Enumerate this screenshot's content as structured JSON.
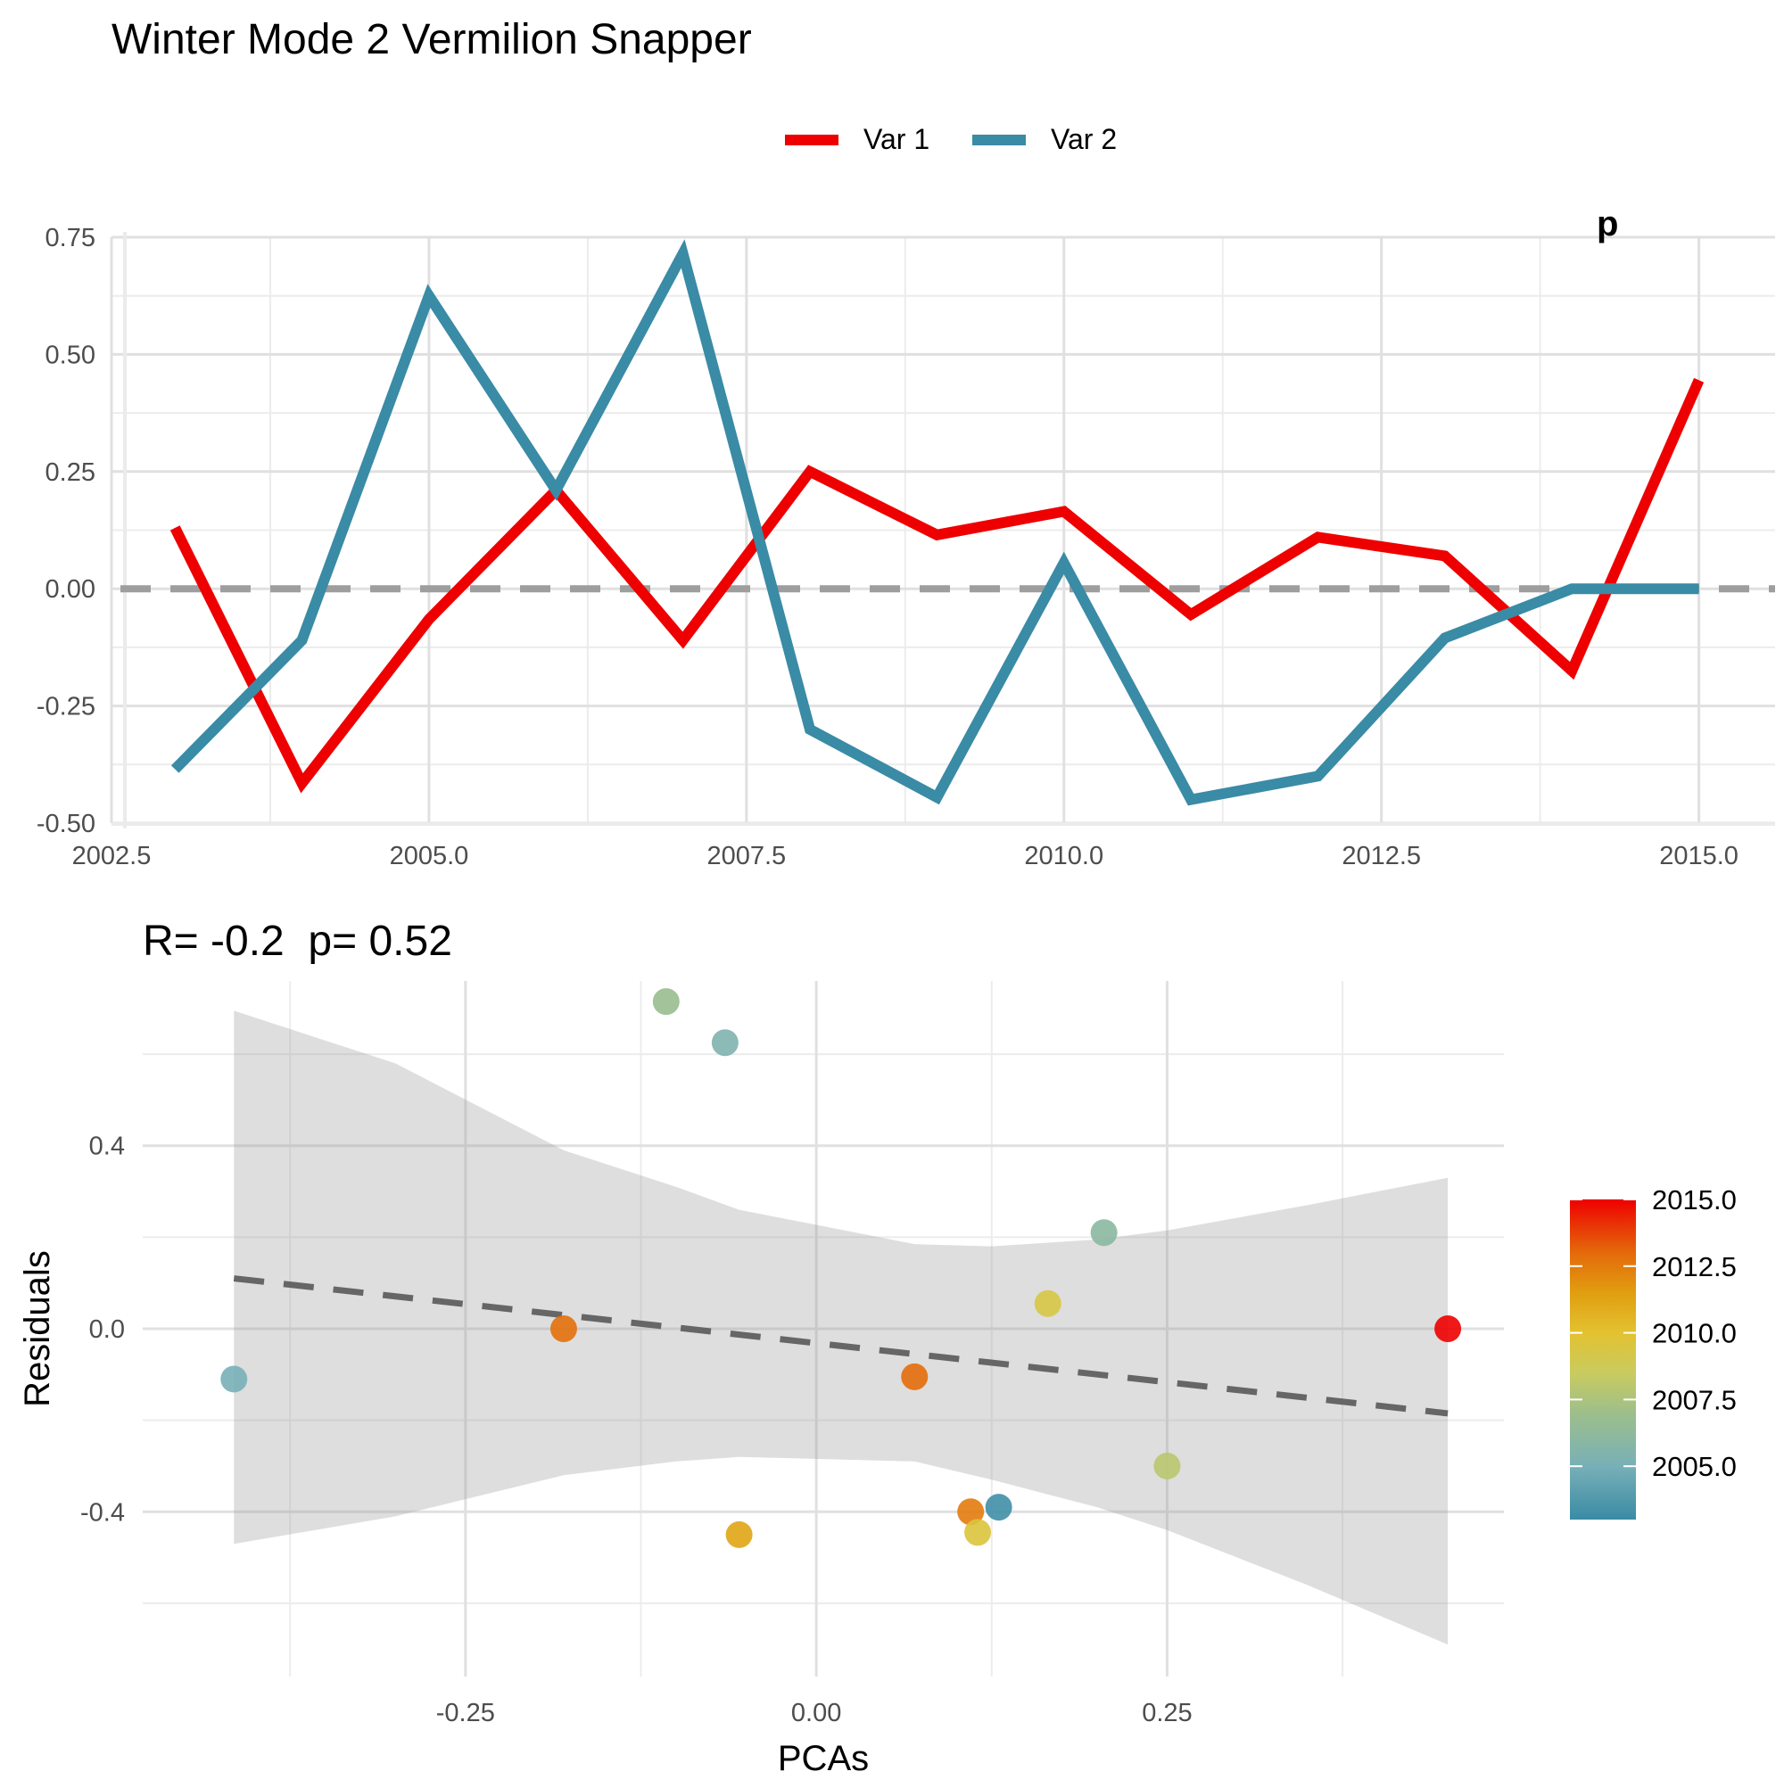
{
  "page_title": "Winter Mode 2 Vermilion Snapper",
  "chart_data": [
    {
      "type": "line",
      "title": "Winter Mode 2 Vermilion Snapper",
      "xlabel": "",
      "ylabel": "",
      "xlim": [
        2002.5,
        2015.6
      ],
      "ylim": [
        -0.5,
        0.75
      ],
      "x_ticks": [
        2002.5,
        2005.0,
        2007.5,
        2010.0,
        2012.5,
        2015.0
      ],
      "x_tick_labels": [
        "2002.5",
        "2005.0",
        "2007.5",
        "2010.0",
        "2012.5",
        "2015.0"
      ],
      "y_ticks": [
        -0.5,
        -0.25,
        0.0,
        0.25,
        0.5,
        0.75
      ],
      "y_tick_labels": [
        "-0.50",
        "-0.25",
        "0.00",
        "0.25",
        "0.50",
        "0.75"
      ],
      "grid": true,
      "legend_position": "top",
      "reference_line": {
        "y": 0,
        "style": "dashed",
        "color": "#9e9e9e"
      },
      "clipped_annotation": "p",
      "x": [
        2003,
        2004,
        2005,
        2006,
        2007,
        2008,
        2009,
        2010,
        2011,
        2012,
        2013,
        2014,
        2015
      ],
      "series": [
        {
          "name": "Var 1",
          "color": "#ee0000",
          "values": [
            0.13,
            -0.415,
            -0.065,
            0.21,
            -0.11,
            0.25,
            0.115,
            0.165,
            -0.055,
            0.11,
            0.07,
            -0.175,
            0.445
          ]
        },
        {
          "name": "Var 2",
          "color": "#3a8ba5",
          "values": [
            -0.385,
            -0.11,
            0.625,
            0.21,
            0.715,
            -0.3,
            -0.445,
            0.055,
            -0.45,
            -0.4,
            -0.105,
            0.0,
            0.0
          ]
        }
      ]
    },
    {
      "type": "scatter",
      "title": "R= -0.2  p= 0.52",
      "xlabel": "PCAs",
      "ylabel": "Residuals",
      "xlim": [
        -0.48,
        0.49
      ],
      "ylim": [
        -0.76,
        0.76
      ],
      "x_ticks": [
        -0.25,
        0.0,
        0.25
      ],
      "x_tick_labels": [
        "-0.25",
        "0.00",
        "0.25"
      ],
      "y_ticks": [
        -0.4,
        0.0,
        0.4
      ],
      "y_tick_labels": [
        "-0.4",
        "0.0",
        "0.4"
      ],
      "grid": true,
      "legend_position": "right",
      "trend_line": {
        "x": [
          -0.415,
          0.45
        ],
        "y": [
          0.11,
          -0.185
        ],
        "style": "dashed",
        "color": "#666666"
      },
      "confidence_band": {
        "x": [
          -0.415,
          -0.3,
          -0.18,
          -0.1,
          -0.055,
          0.07,
          0.125,
          0.2,
          0.25,
          0.35,
          0.45
        ],
        "upper": [
          0.695,
          0.58,
          0.39,
          0.31,
          0.26,
          0.185,
          0.18,
          0.195,
          0.215,
          0.27,
          0.33
        ],
        "lower": [
          -0.47,
          -0.41,
          -0.32,
          -0.29,
          -0.28,
          -0.29,
          -0.33,
          -0.39,
          -0.44,
          -0.56,
          -0.69
        ]
      },
      "colorbar": {
        "range": [
          2003,
          2015
        ],
        "ticks": [
          2005.0,
          2007.5,
          2010.0,
          2012.5,
          2015.0
        ],
        "tick_labels": [
          "2005.0",
          "2007.5",
          "2010.0",
          "2012.5",
          "2015.0"
        ],
        "stops": [
          {
            "value": 2003,
            "color": "#3a8ba5"
          },
          {
            "value": 2005,
            "color": "#78b0b7"
          },
          {
            "value": 2007,
            "color": "#9dbf8b"
          },
          {
            "value": 2008.5,
            "color": "#c9cb5f"
          },
          {
            "value": 2010,
            "color": "#e3c230"
          },
          {
            "value": 2011.5,
            "color": "#e09e10"
          },
          {
            "value": 2013,
            "color": "#e46a0b"
          },
          {
            "value": 2015,
            "color": "#ee0000"
          }
        ]
      },
      "points": [
        {
          "x": -0.415,
          "y": -0.11,
          "year": 2005.0
        },
        {
          "x": -0.18,
          "y": 0.0,
          "year": 2012.8
        },
        {
          "x": -0.107,
          "y": 0.715,
          "year": 2006.8
        },
        {
          "x": -0.065,
          "y": 0.625,
          "year": 2005.4
        },
        {
          "x": -0.055,
          "y": -0.45,
          "year": 2011.2
        },
        {
          "x": 0.07,
          "y": -0.105,
          "year": 2012.9
        },
        {
          "x": 0.11,
          "y": -0.4,
          "year": 2012.5
        },
        {
          "x": 0.115,
          "y": -0.445,
          "year": 2009.6
        },
        {
          "x": 0.13,
          "y": -0.39,
          "year": 2003.2
        },
        {
          "x": 0.165,
          "y": 0.055,
          "year": 2009.3
        },
        {
          "x": 0.205,
          "y": 0.21,
          "year": 2006.0
        },
        {
          "x": 0.25,
          "y": -0.3,
          "year": 2008.0
        },
        {
          "x": 0.45,
          "y": 0.0,
          "year": 2015.0
        }
      ]
    }
  ]
}
